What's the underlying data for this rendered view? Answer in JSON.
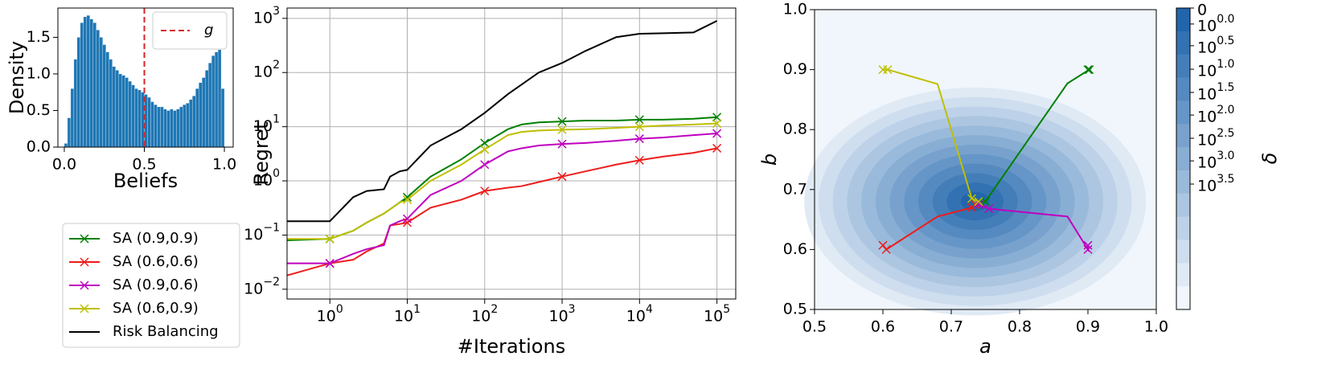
{
  "chart_data": [
    {
      "type": "histogram",
      "xlabel": "Beliefs",
      "ylabel": "Density",
      "color": "#1f77b4",
      "bins": [
        0,
        0.02,
        0.04,
        0.06,
        0.08,
        0.1,
        0.12,
        0.14,
        0.16,
        0.18,
        0.2,
        0.22,
        0.24,
        0.26,
        0.28,
        0.3,
        0.32,
        0.34,
        0.36,
        0.38,
        0.4,
        0.42,
        0.44,
        0.46,
        0.48,
        0.5,
        0.52,
        0.54,
        0.56,
        0.58,
        0.6,
        0.62,
        0.64,
        0.66,
        0.68,
        0.7,
        0.72,
        0.74,
        0.76,
        0.78,
        0.8,
        0.82,
        0.84,
        0.86,
        0.88,
        0.9,
        0.92,
        0.94,
        0.96,
        0.98,
        1
      ],
      "values": [
        0.05,
        0.4,
        0.8,
        1.2,
        1.5,
        1.7,
        1.78,
        1.8,
        1.75,
        1.7,
        1.6,
        1.5,
        1.4,
        1.3,
        1.2,
        1.1,
        1.05,
        1.0,
        0.98,
        0.95,
        0.9,
        0.85,
        0.8,
        0.78,
        0.75,
        0.72,
        0.68,
        0.62,
        0.58,
        0.55,
        0.55,
        0.52,
        0.5,
        0.52,
        0.5,
        0.52,
        0.55,
        0.58,
        0.6,
        0.65,
        0.7,
        0.8,
        0.88,
        0.95,
        1.05,
        1.15,
        1.25,
        1.3,
        1.33,
        0.8
      ],
      "xlim": [
        -0.04,
        1.055
      ],
      "ylim": [
        0,
        1.9
      ],
      "xticks": [
        {
          "value": 0,
          "label": "0.0"
        },
        0.5,
        {
          "value": 1,
          "label": "1.0"
        }
      ],
      "yticks": [
        {
          "value": 0,
          "label": "0.0"
        },
        0.5,
        {
          "value": 1,
          "label": "1.0"
        },
        1.5
      ],
      "vline": {
        "x": 0.5,
        "name": "g",
        "color": "#d62728"
      }
    },
    {
      "type": "line",
      "xlabel": "#Iterations",
      "ylabel": "Regret",
      "xscale": "log",
      "yscale": "log",
      "grid": true,
      "xlim": [
        0.28,
        175000
      ],
      "ylim": [
        0.0066,
        1550
      ],
      "xticks": [
        {
          "value": 1,
          "label": "10^0"
        },
        {
          "value": 10,
          "label": "10^1"
        },
        {
          "value": 100,
          "label": "10^2"
        },
        {
          "value": 1000,
          "label": "10^3"
        },
        {
          "value": 10000,
          "label": "10^4"
        },
        {
          "value": 100000,
          "label": "10^5"
        }
      ],
      "yticks": [
        {
          "value": 0.01,
          "label": "10^−2"
        },
        {
          "value": 0.1,
          "label": "10^−1"
        },
        {
          "value": 1,
          "label": "10^0"
        },
        {
          "value": 10,
          "label": "10^1"
        },
        {
          "value": 100,
          "label": "10^2"
        },
        {
          "value": 1000,
          "label": "10^3"
        }
      ],
      "x": [
        0.28,
        1,
        2,
        3,
        5,
        6,
        8,
        10,
        20,
        50,
        100,
        200,
        300,
        500,
        1000,
        2000,
        5000,
        10000,
        20000,
        50000,
        100000
      ],
      "series": [
        {
          "name": "SA (0.9,0.9)",
          "color": "#008000",
          "marker": "x",
          "values": [
            0.08,
            0.085,
            0.12,
            0.17,
            0.25,
            0.3,
            0.4,
            0.5,
            1.2,
            2.5,
            5,
            9,
            11,
            12,
            12.5,
            13,
            13,
            13.5,
            13.5,
            14,
            15
          ]
        },
        {
          "name": "SA (0.6,0.6)",
          "color": "#ee1c1c",
          "marker": "x",
          "values": [
            0.018,
            0.03,
            0.035,
            0.05,
            0.07,
            0.15,
            0.16,
            0.17,
            0.32,
            0.45,
            0.65,
            0.75,
            0.8,
            0.95,
            1.2,
            1.5,
            2,
            2.4,
            2.8,
            3.3,
            4
          ]
        },
        {
          "name": "SA (0.9,0.6)",
          "color": "#bf00bf",
          "marker": "x",
          "values": [
            0.03,
            0.03,
            0.045,
            0.055,
            0.065,
            0.15,
            0.18,
            0.2,
            0.55,
            1,
            2,
            3.5,
            4,
            4.5,
            4.8,
            5,
            5.5,
            6,
            6.3,
            7,
            7.5
          ]
        },
        {
          "name": "SA (0.6,0.9)",
          "color": "#bfbf00",
          "marker": "x",
          "values": [
            0.085,
            0.085,
            0.12,
            0.17,
            0.25,
            0.3,
            0.4,
            0.45,
            1,
            2,
            3.8,
            7,
            8,
            8.5,
            8.8,
            9,
            9.5,
            10,
            10.5,
            11,
            11.5
          ]
        },
        {
          "name": "Risk Balancing",
          "color": "#000000",
          "values": [
            0.18,
            0.18,
            0.5,
            0.65,
            0.7,
            1.2,
            1.5,
            1.6,
            4.5,
            9,
            18,
            40,
            60,
            100,
            150,
            250,
            450,
            520,
            530,
            550,
            900
          ]
        }
      ]
    },
    {
      "type": "contour",
      "xlabel": "a",
      "ylabel": "b",
      "xlim": [
        0.5,
        1.0
      ],
      "ylim": [
        0.5,
        1.0
      ],
      "xticks": [
        0.5,
        0.6,
        0.7,
        0.8,
        0.9,
        {
          "value": 1,
          "label": "1.0"
        }
      ],
      "yticks": [
        0.5,
        0.6,
        0.7,
        0.8,
        0.9,
        {
          "value": 1,
          "label": "1.0"
        }
      ],
      "center": [
        0.735,
        0.68
      ],
      "colorbar": {
        "label": "δ",
        "lim": [
          0,
          1
        ],
        "ticks": [
          {
            "value": 0,
            "label": "0"
          },
          {
            "value": 0.053,
            "label": "10^0.0"
          },
          {
            "value": 0.125,
            "label": "10^0.5"
          },
          {
            "value": 0.203,
            "label": "10^1.0"
          },
          {
            "value": 0.28,
            "label": "10^1.5"
          },
          {
            "value": 0.355,
            "label": "10^2.0"
          },
          {
            "value": 0.432,
            "label": "10^2.5"
          },
          {
            "value": 0.507,
            "label": "10^3.0"
          },
          {
            "value": 0.584,
            "label": "10^3.5"
          }
        ]
      },
      "series": [
        {
          "color": "#008000",
          "x": [
            0.9,
            0.902,
            0.87,
            0.75,
            0.74
          ],
          "values": [
            0.9,
            0.9,
            0.877,
            0.68,
            0.68
          ]
        },
        {
          "color": "#ee1c1c",
          "x": [
            0.6,
            0.605,
            0.68,
            0.73,
            0.735
          ],
          "values": [
            0.607,
            0.6,
            0.655,
            0.67,
            0.675
          ]
        },
        {
          "color": "#bf00bf",
          "x": [
            0.9,
            0.9,
            0.87,
            0.755,
            0.74
          ],
          "values": [
            0.607,
            0.6,
            0.655,
            0.668,
            0.675
          ]
        },
        {
          "color": "#bfbf00",
          "x": [
            0.6,
            0.607,
            0.68,
            0.73,
            0.74
          ],
          "values": [
            0.9,
            0.9,
            0.876,
            0.685,
            0.68
          ]
        }
      ]
    }
  ]
}
